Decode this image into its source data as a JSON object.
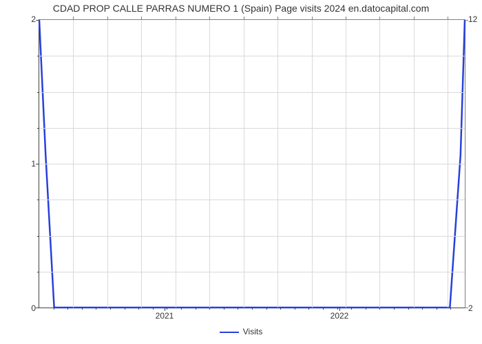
{
  "chart": {
    "type": "line",
    "title": "CDAD PROP CALLE PARRAS NUMERO 1 (Spain) Page visits 2024 en.datocapital.com",
    "title_fontsize": 14,
    "title_color": "#333333",
    "background_color": "#ffffff",
    "grid_color": "#d9d9d9",
    "axis_color": "#404040",
    "secondary_axis_color": "#808080",
    "line_color": "#2640dc",
    "line_width": 2.5,
    "x_axis": {
      "label_fontsize": 12,
      "major_ticks": [
        "2021",
        "2022"
      ],
      "major_positions_pct": [
        29.5,
        70.5
      ],
      "minor_tick_count": 30,
      "grid_lines_pct": [
        8,
        16,
        24,
        32,
        40,
        48,
        56,
        64,
        72,
        80,
        88,
        96
      ]
    },
    "y_left": {
      "ticks": [
        0,
        1,
        2
      ],
      "positions_pct_from_top": [
        100,
        50,
        0
      ],
      "minor_step_pct": 12.5
    },
    "y_right": {
      "ticks": [
        2,
        12
      ],
      "positions_pct_from_top": [
        100,
        0
      ]
    },
    "series": [
      {
        "name": "Visits",
        "points_pct": [
          [
            0,
            0
          ],
          [
            1.5,
            47
          ],
          [
            3.5,
            100
          ],
          [
            96.5,
            100
          ],
          [
            99,
            47
          ],
          [
            100,
            0
          ]
        ]
      }
    ],
    "legend": {
      "label": "Visits",
      "swatch_color": "#2640dc"
    }
  }
}
